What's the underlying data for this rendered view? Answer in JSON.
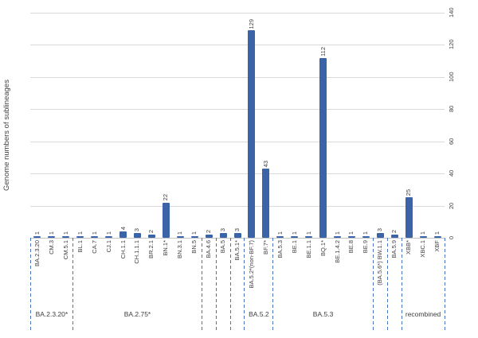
{
  "page": {
    "background": "#ffffff"
  },
  "chart_data": {
    "type": "bar",
    "title": "",
    "xlabel": "",
    "ylabel": "Genome numbers of sublineages",
    "ylim": [
      0,
      140
    ],
    "yticks": [
      0,
      20,
      40,
      60,
      80,
      100,
      120,
      140
    ],
    "yaxis_side": "right",
    "grid": true,
    "legend": "none",
    "bar_color": "#3a63a8",
    "separator_color": "#4472c4",
    "gridline_color": "#d9d9d9",
    "label_color": "#404040",
    "value_labels_shown": true,
    "label_orientation": "rotated-90-bottom-to-top",
    "categories": [
      "BA.2.3.20",
      "CM.3",
      "CM.5.1",
      "BL.1",
      "CA.7",
      "CJ.1",
      "CH.1.1",
      "CH.1.1.1",
      "BR.2.1",
      "BN.1*",
      "BN.3.1",
      "BN.5",
      "BA.4.6",
      "BA.5",
      "BA.5.1*",
      "BA.5.2*(non-BF.7)",
      "BF.7*",
      "BA.5.3",
      "BE.1",
      "BE.1.1",
      "BQ.1*",
      "BE.1.4.2",
      "BE.8",
      "BE.9",
      "(BA.5.6*) BW.1.1",
      "BA.5.9",
      "XBB*",
      "XBC.1",
      "XBF"
    ],
    "values": [
      1,
      1,
      1,
      1,
      1,
      1,
      4,
      3,
      2,
      22,
      1,
      1,
      2,
      3,
      3,
      129,
      43,
      1,
      1,
      1,
      112,
      1,
      1,
      1,
      3,
      2,
      25,
      1,
      1
    ],
    "groups": [
      {
        "label": "BA.2.3.20*",
        "start": 0,
        "end": 3
      },
      {
        "label": "BA.2.75*",
        "start": 3,
        "end": 12
      },
      {
        "label": "",
        "start": 12,
        "end": 13
      },
      {
        "label": "",
        "start": 13,
        "end": 14
      },
      {
        "label": "",
        "start": 14,
        "end": 15
      },
      {
        "label": "BA.5.2",
        "start": 15,
        "end": 17
      },
      {
        "label": "BA.5.3",
        "start": 17,
        "end": 24
      },
      {
        "label": "",
        "start": 24,
        "end": 25
      },
      {
        "label": "",
        "start": 25,
        "end": 26
      },
      {
        "label": "recombined",
        "start": 26,
        "end": 29
      }
    ]
  }
}
